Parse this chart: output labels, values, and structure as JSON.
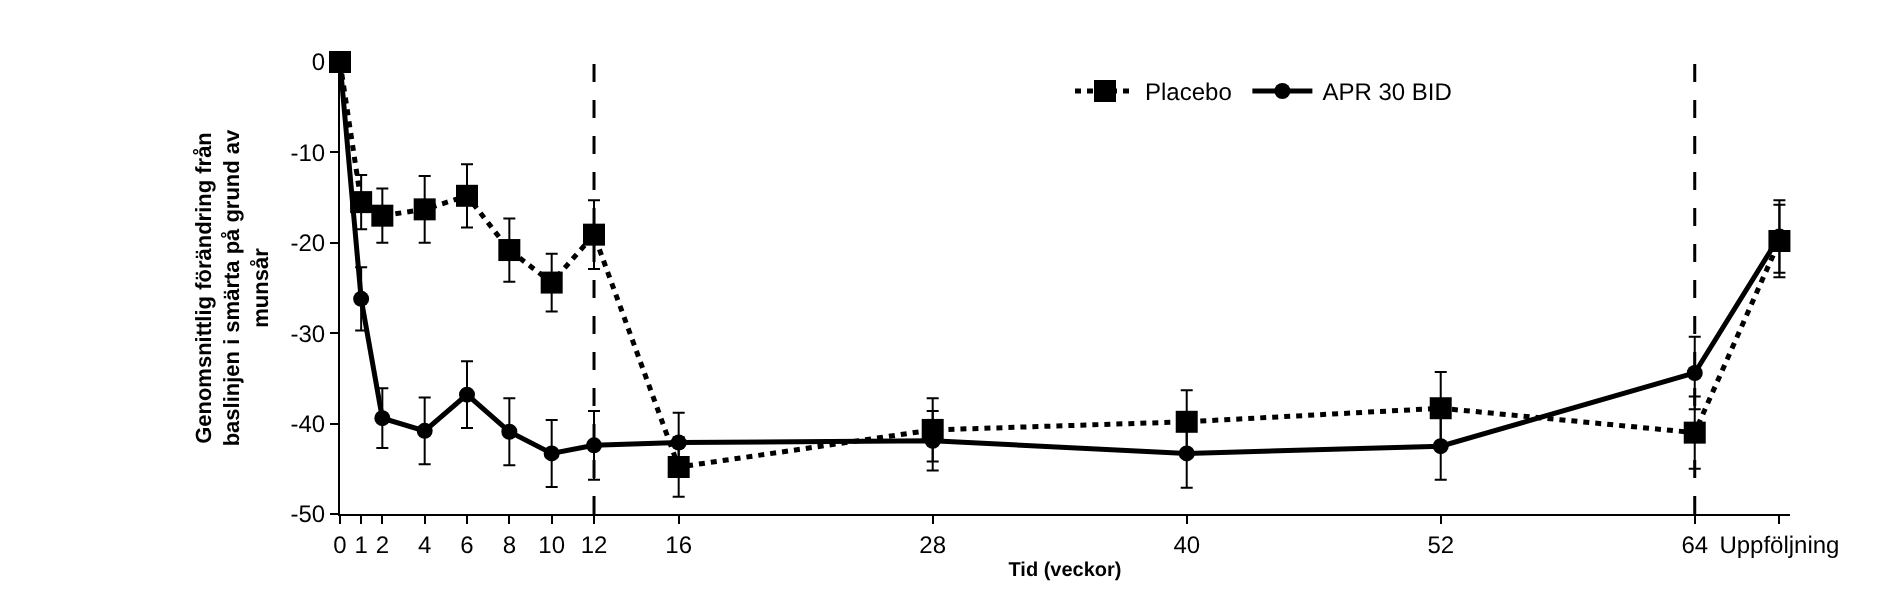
{
  "chart_data": {
    "type": "line",
    "xlabel": "Tid (veckor)",
    "ylabel": "Genomsnittlig förändring från baslinjen i smärta på grund av munsår",
    "x": [
      0,
      1,
      2,
      4,
      6,
      8,
      10,
      12,
      16,
      28,
      40,
      52,
      64,
      68
    ],
    "xlim": [
      0,
      68.5
    ],
    "xticks": [
      0,
      1,
      2,
      4,
      6,
      8,
      10,
      12,
      16,
      28,
      40,
      52,
      64,
      {
        "value": 68,
        "label": "Uppföljning"
      }
    ],
    "ylim": [
      -50,
      0
    ],
    "yticks": [
      -50,
      -40,
      -30,
      -20,
      -10,
      0
    ],
    "grid": false,
    "legend": "top right",
    "ref_lines": [
      {
        "axis": "x",
        "value": 12,
        "line_style": "dashed",
        "color": "#000000"
      },
      {
        "axis": "x",
        "value": 64,
        "line_style": "dashed",
        "color": "#000000"
      }
    ],
    "series": [
      {
        "name": "Placebo",
        "color": "#000000",
        "marker": "square",
        "line_style": "dotted",
        "values": [
          0,
          -15.5,
          -17,
          -16.3,
          -14.8,
          -20.8,
          -24.4,
          -19.1,
          -44.8,
          -40.7,
          -39.8,
          -38.3,
          -41,
          -19.8
        ],
        "errors": [
          null,
          3,
          3,
          3.7,
          3.5,
          3.5,
          3.2,
          3.8,
          3.3,
          3.5,
          3.5,
          4,
          4,
          4
        ]
      },
      {
        "name": "APR 30 BID",
        "color": "#000000",
        "marker": "circle",
        "line_style": "solid",
        "values": [
          0,
          -26.2,
          -39.4,
          -40.8,
          -36.8,
          -40.9,
          -43.3,
          -42.4,
          -42.1,
          -41.9,
          -43.3,
          -42.5,
          -34.4,
          -19.3
        ],
        "errors": [
          null,
          3.5,
          3.3,
          3.7,
          3.7,
          3.7,
          3.7,
          3.8,
          3.3,
          3.3,
          3.8,
          3.7,
          4,
          4
        ]
      }
    ]
  }
}
